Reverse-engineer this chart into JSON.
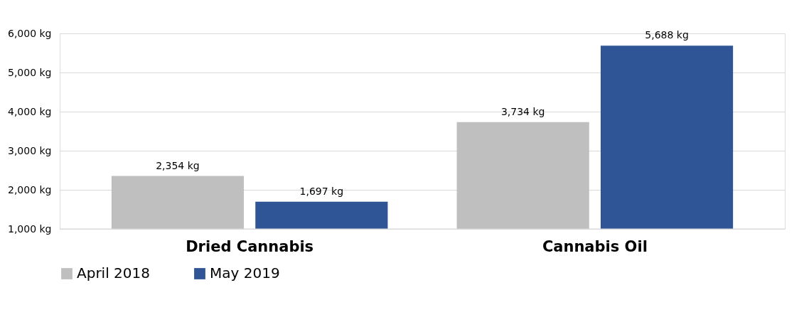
{
  "chart_data": {
    "type": "bar",
    "categories": [
      "Dried Cannabis",
      "Cannabis Oil"
    ],
    "series": [
      {
        "name": "April 2018",
        "color": "#bfbfbf",
        "values": [
          2354,
          3734
        ],
        "value_labels": [
          "2,354 kg",
          "3,734 kg"
        ]
      },
      {
        "name": "May 2019",
        "color": "#2f5597",
        "values": [
          1697,
          5688
        ],
        "value_labels": [
          "1,697 kg",
          "5,688 kg"
        ]
      }
    ],
    "ylim": [
      1000,
      6000
    ],
    "yticks": [
      {
        "value": 1000,
        "label": "1,000 kg"
      },
      {
        "value": 2000,
        "label": "2,000 kg"
      },
      {
        "value": 3000,
        "label": "3,000 kg"
      },
      {
        "value": 4000,
        "label": "4,000 kg"
      },
      {
        "value": 5000,
        "label": "5,000 kg"
      },
      {
        "value": 6000,
        "label": "6,000 kg"
      }
    ],
    "grid": "y",
    "legend": "bottom"
  }
}
